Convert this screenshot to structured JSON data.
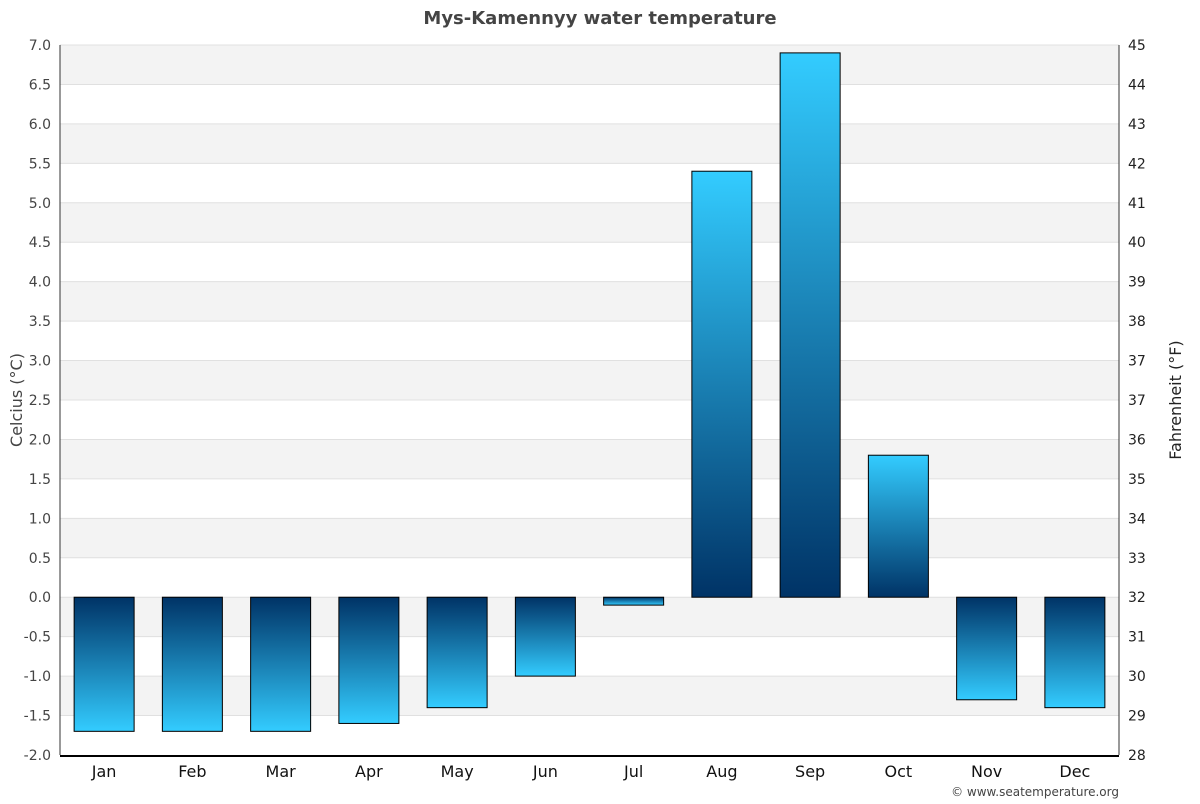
{
  "chart_data": {
    "type": "bar",
    "title": "Mys-Kamennyy water temperature",
    "ylabel": "Celcius (°C)",
    "ylabel_right": "Fahrenheit (°F)",
    "xlabel": "",
    "categories": [
      "Jan",
      "Feb",
      "Mar",
      "Apr",
      "May",
      "Jun",
      "Jul",
      "Aug",
      "Sep",
      "Oct",
      "Nov",
      "Dec"
    ],
    "values": [
      -1.7,
      -1.7,
      -1.7,
      -1.6,
      -1.4,
      -1.0,
      -0.1,
      5.4,
      6.9,
      1.8,
      -1.3,
      -1.4
    ],
    "ylim": [
      -2.0,
      7.0
    ],
    "y_ticks": [
      "-2.0",
      "-1.5",
      "-1.0",
      "-0.5",
      "0.0",
      "0.5",
      "1.0",
      "1.5",
      "2.0",
      "2.5",
      "3.0",
      "3.5",
      "4.0",
      "4.5",
      "5.0",
      "5.5",
      "6.0",
      "6.5",
      "7.0"
    ],
    "y_right_ticks": [
      "28",
      "29",
      "30",
      "31",
      "32",
      "33",
      "34",
      "35",
      "36",
      "37",
      "37",
      "38",
      "39",
      "40",
      "41",
      "42",
      "43",
      "44",
      "45"
    ],
    "grid": true,
    "colors": {
      "bar_light": "#33ccff",
      "bar_dark": "#003366",
      "band": "#f3f3f3",
      "title": "#444444"
    },
    "credit": "© www.seatemperature.org"
  }
}
